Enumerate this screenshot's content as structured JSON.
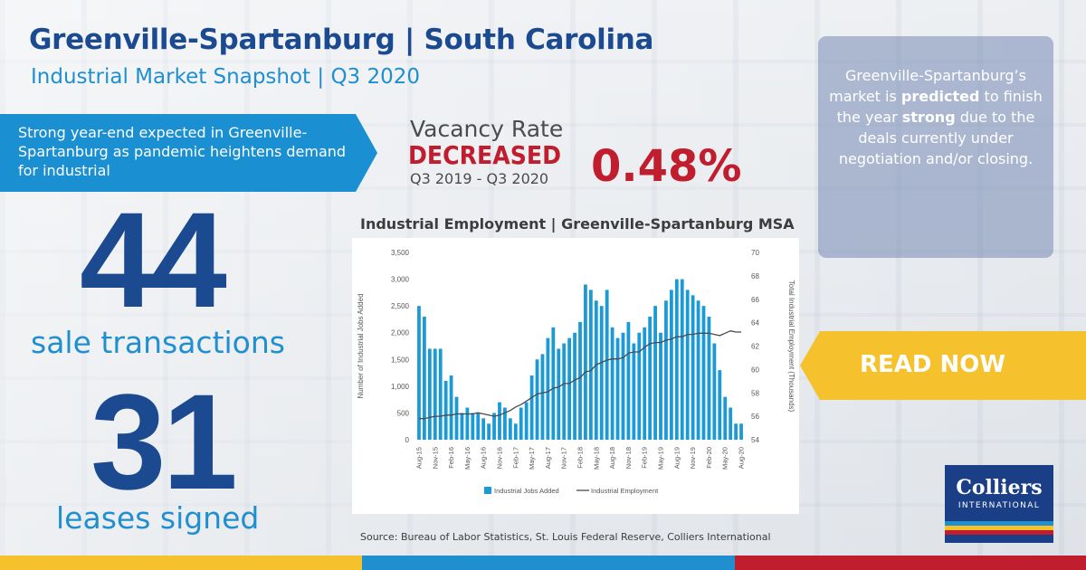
{
  "header": {
    "title": "Greenville-Spartanburg | South Carolina",
    "subtitle": "Industrial Market Snapshot | Q3 2020"
  },
  "banner": {
    "text": "Strong year-end expected in Greenville-Spartanburg as pandemic heightens demand for industrial"
  },
  "vacancy": {
    "label": "Vacancy Rate",
    "status": "DECREASED",
    "period": "Q3 2019 - Q3 2020",
    "value": "0.48%"
  },
  "stats": {
    "sales_number": "44",
    "sales_label": "sale transactions",
    "leases_number": "31",
    "leases_label": "leases signed"
  },
  "callout": {
    "pre1": "Greenville-Spartanburg’s market is ",
    "bold1": "predicted",
    "mid": " to finish the year ",
    "bold2": "strong",
    "post": " due to the deals currently under negotiation and/or closing."
  },
  "cta": {
    "label": "READ NOW"
  },
  "logo": {
    "name": "Colliers",
    "sub": "INTERNATIONAL"
  },
  "source": "Source: Bureau of Labor Statistics, St. Louis Federal Reserve, Colliers International",
  "colors": {
    "navy": "#1b4a91",
    "blue": "#1f8fd0",
    "red": "#c01d2e",
    "yellow": "#f5c12c",
    "bar_blue": "#1b9ad6",
    "line_gray": "#4a4a4a",
    "bottom_bar": [
      "#f5c12c",
      "#1f8fd0",
      "#c01d2e"
    ],
    "logo_stripes": [
      "#1f8fd0",
      "#f5c12c",
      "#c01d2e"
    ]
  },
  "chart_data": {
    "type": "bar",
    "title": "Industrial Employment | Greenville-Spartanburg MSA",
    "ylabel": "Number of Industrial Jobs Added",
    "y2label": "Total Industrial Employment (Thousands)",
    "ylim": [
      0,
      3500
    ],
    "y2lim": [
      54,
      70
    ],
    "yticks": [
      0,
      500,
      1000,
      1500,
      2000,
      2500,
      3000,
      3500
    ],
    "y2ticks": [
      54,
      56,
      58,
      60,
      62,
      64,
      66,
      68,
      70
    ],
    "x": [
      "Aug-15",
      "Sep-15",
      "Oct-15",
      "Nov-15",
      "Dec-15",
      "Jan-16",
      "Feb-16",
      "Mar-16",
      "Apr-16",
      "May-16",
      "Jun-16",
      "Jul-16",
      "Aug-16",
      "Sep-16",
      "Oct-16",
      "Nov-16",
      "Dec-16",
      "Jan-17",
      "Feb-17",
      "Mar-17",
      "Apr-17",
      "May-17",
      "Jun-17",
      "Jul-17",
      "Aug-17",
      "Sep-17",
      "Oct-17",
      "Nov-17",
      "Dec-17",
      "Jan-18",
      "Feb-18",
      "Mar-18",
      "Apr-18",
      "May-18",
      "Jun-18",
      "Jul-18",
      "Aug-18",
      "Sep-18",
      "Oct-18",
      "Nov-18",
      "Dec-18",
      "Jan-19",
      "Feb-19",
      "Mar-19",
      "Apr-19",
      "May-19",
      "Jun-19",
      "Jul-19",
      "Aug-19",
      "Sep-19",
      "Oct-19",
      "Nov-19",
      "Dec-19",
      "Jan-20",
      "Feb-20",
      "Mar-20",
      "Apr-20",
      "May-20",
      "Jun-20",
      "Jul-20",
      "Aug-20"
    ],
    "xticks": [
      "Aug-15",
      "Nov-15",
      "Feb-16",
      "May-16",
      "Aug-16",
      "Nov-16",
      "Feb-17",
      "May-17",
      "Aug-17",
      "Nov-17",
      "Feb-18",
      "May-18",
      "Aug-18",
      "Nov-18",
      "Feb-19",
      "May-19",
      "Aug-19",
      "Nov-19",
      "Feb-20",
      "May-20",
      "Aug-20"
    ],
    "series": [
      {
        "name": "Industrial Jobs Added",
        "type": "bar",
        "values": [
          2500,
          2300,
          1700,
          1700,
          1700,
          1100,
          1200,
          800,
          500,
          600,
          500,
          500,
          400,
          300,
          500,
          700,
          600,
          400,
          300,
          600,
          700,
          1200,
          1500,
          1600,
          1900,
          2100,
          1700,
          1800,
          1900,
          2000,
          2200,
          2900,
          2800,
          2600,
          2500,
          2800,
          2100,
          1900,
          2000,
          2200,
          1800,
          2000,
          2100,
          2300,
          2500,
          2000,
          2600,
          2800,
          3000,
          3000,
          2800,
          2700,
          2600,
          2500,
          2300,
          1800,
          1300,
          800,
          600,
          300,
          300
        ]
      },
      {
        "name": "Industrial Employment",
        "type": "line",
        "axis": "right",
        "values": [
          55.8,
          55.8,
          55.9,
          56.0,
          56.0,
          56.1,
          56.1,
          56.2,
          56.2,
          56.2,
          56.2,
          56.3,
          56.2,
          56.1,
          56.0,
          56.1,
          56.3,
          56.5,
          56.8,
          57.0,
          57.3,
          57.6,
          57.9,
          58.0,
          58.1,
          58.4,
          58.5,
          58.8,
          58.8,
          59.1,
          59.3,
          59.8,
          59.9,
          60.4,
          60.6,
          60.8,
          60.9,
          60.9,
          61.0,
          61.4,
          61.5,
          61.5,
          61.9,
          62.2,
          62.3,
          62.3,
          62.5,
          62.6,
          62.8,
          62.8,
          63.0,
          63.0,
          63.1,
          63.1,
          63.1,
          63.0,
          62.9,
          63.1,
          63.3,
          63.2,
          63.2
        ]
      }
    ],
    "legend": "bottom"
  }
}
